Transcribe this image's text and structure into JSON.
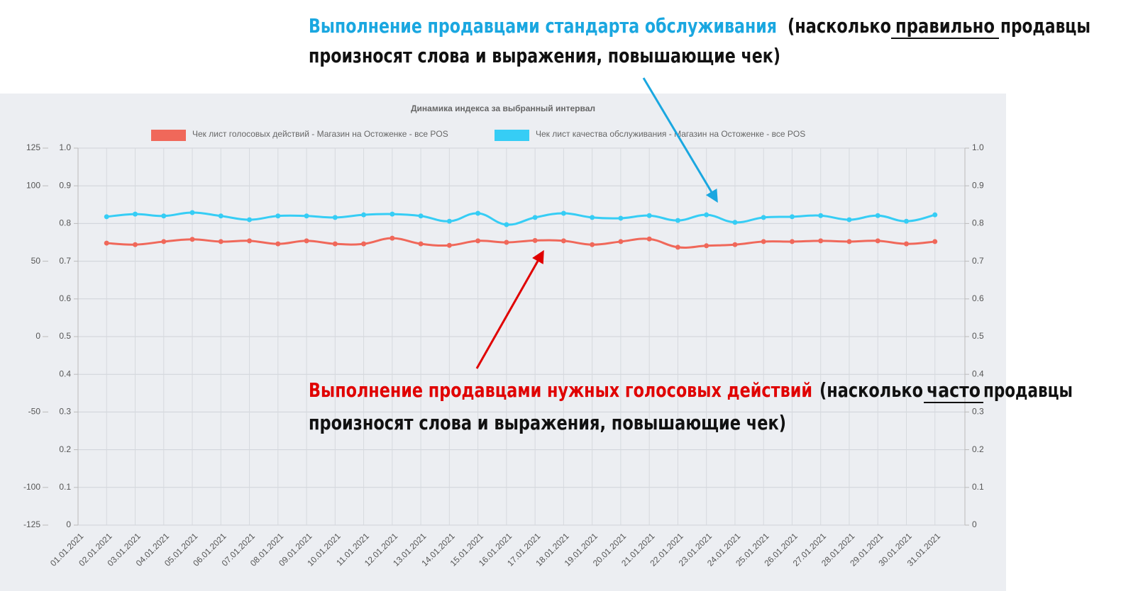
{
  "chart_data": {
    "type": "line",
    "title": "Динамика индекса за выбранный интервал",
    "categories": [
      "01.01.2021",
      "02.01.2021",
      "03.01.2021",
      "04.01.2021",
      "05.01.2021",
      "06.01.2021",
      "07.01.2021",
      "08.01.2021",
      "09.01.2021",
      "10.01.2021",
      "11.01.2021",
      "12.01.2021",
      "13.01.2021",
      "14.01.2021",
      "15.01.2021",
      "16.01.2021",
      "17.01.2021",
      "18.01.2021",
      "19.01.2021",
      "20.01.2021",
      "21.01.2021",
      "22.01.2021",
      "23.01.2021",
      "24.01.2021",
      "25.01.2021",
      "26.01.2021",
      "27.01.2021",
      "28.01.2021",
      "29.01.2021",
      "30.01.2021",
      "31.01.2021"
    ],
    "series": [
      {
        "name": "Чек лист голосовых действий - Магазин на Остоженке - все POS",
        "color": "#f0685a",
        "values": [
          null,
          0.748,
          0.744,
          0.752,
          0.758,
          0.752,
          0.754,
          0.746,
          0.754,
          0.746,
          0.746,
          0.761,
          0.746,
          0.742,
          0.754,
          0.75,
          0.755,
          0.754,
          0.744,
          0.752,
          0.759,
          0.737,
          0.741,
          0.744,
          0.752,
          0.752,
          0.754,
          0.752,
          0.754,
          0.746,
          0.752
        ]
      },
      {
        "name": "Чек лист качества обслуживания - Магазин на Остоженке - все POS",
        "color": "#36cdf5",
        "values": [
          null,
          0.818,
          0.825,
          0.82,
          0.829,
          0.82,
          0.81,
          0.82,
          0.82,
          0.816,
          0.823,
          0.825,
          0.82,
          0.806,
          0.827,
          0.797,
          0.816,
          0.827,
          0.816,
          0.814,
          0.821,
          0.808,
          0.823,
          0.803,
          0.816,
          0.818,
          0.821,
          0.81,
          0.821,
          0.806,
          0.823
        ]
      }
    ],
    "ylim": [
      0,
      1
    ],
    "yticks": [
      {
        "value": 1,
        "label": "1.0"
      },
      0.9,
      0.8,
      0.7,
      0.6,
      0.5,
      0.4,
      0.3,
      0.2,
      0.1,
      0
    ],
    "y2lim": [
      0,
      1
    ],
    "y2ticks": [
      {
        "value": 1,
        "label": "1.0"
      },
      0.9,
      0.8,
      0.7,
      0.6,
      0.5,
      0.4,
      0.3,
      0.2,
      0.1,
      0
    ],
    "y3lim": [
      -125,
      125
    ],
    "y3ticks": [
      125,
      100,
      50,
      0,
      -50,
      -100,
      -125
    ],
    "grid": true
  },
  "annotations": [
    {
      "highlight": "Выполнение продавцами стандарта обслуживания",
      "before": "(насколько",
      "emphasis": "правильно",
      "after": "продавцы",
      "line2": "произносят слова и выражения, повышающие чек)"
    },
    {
      "highlight": "Выполнение продавцами нужных голосовых действий",
      "before": "(насколько",
      "emphasis": "часто",
      "after": "продавцы",
      "line2": "произносят  слова и выражения, повышающие чек)"
    }
  ]
}
